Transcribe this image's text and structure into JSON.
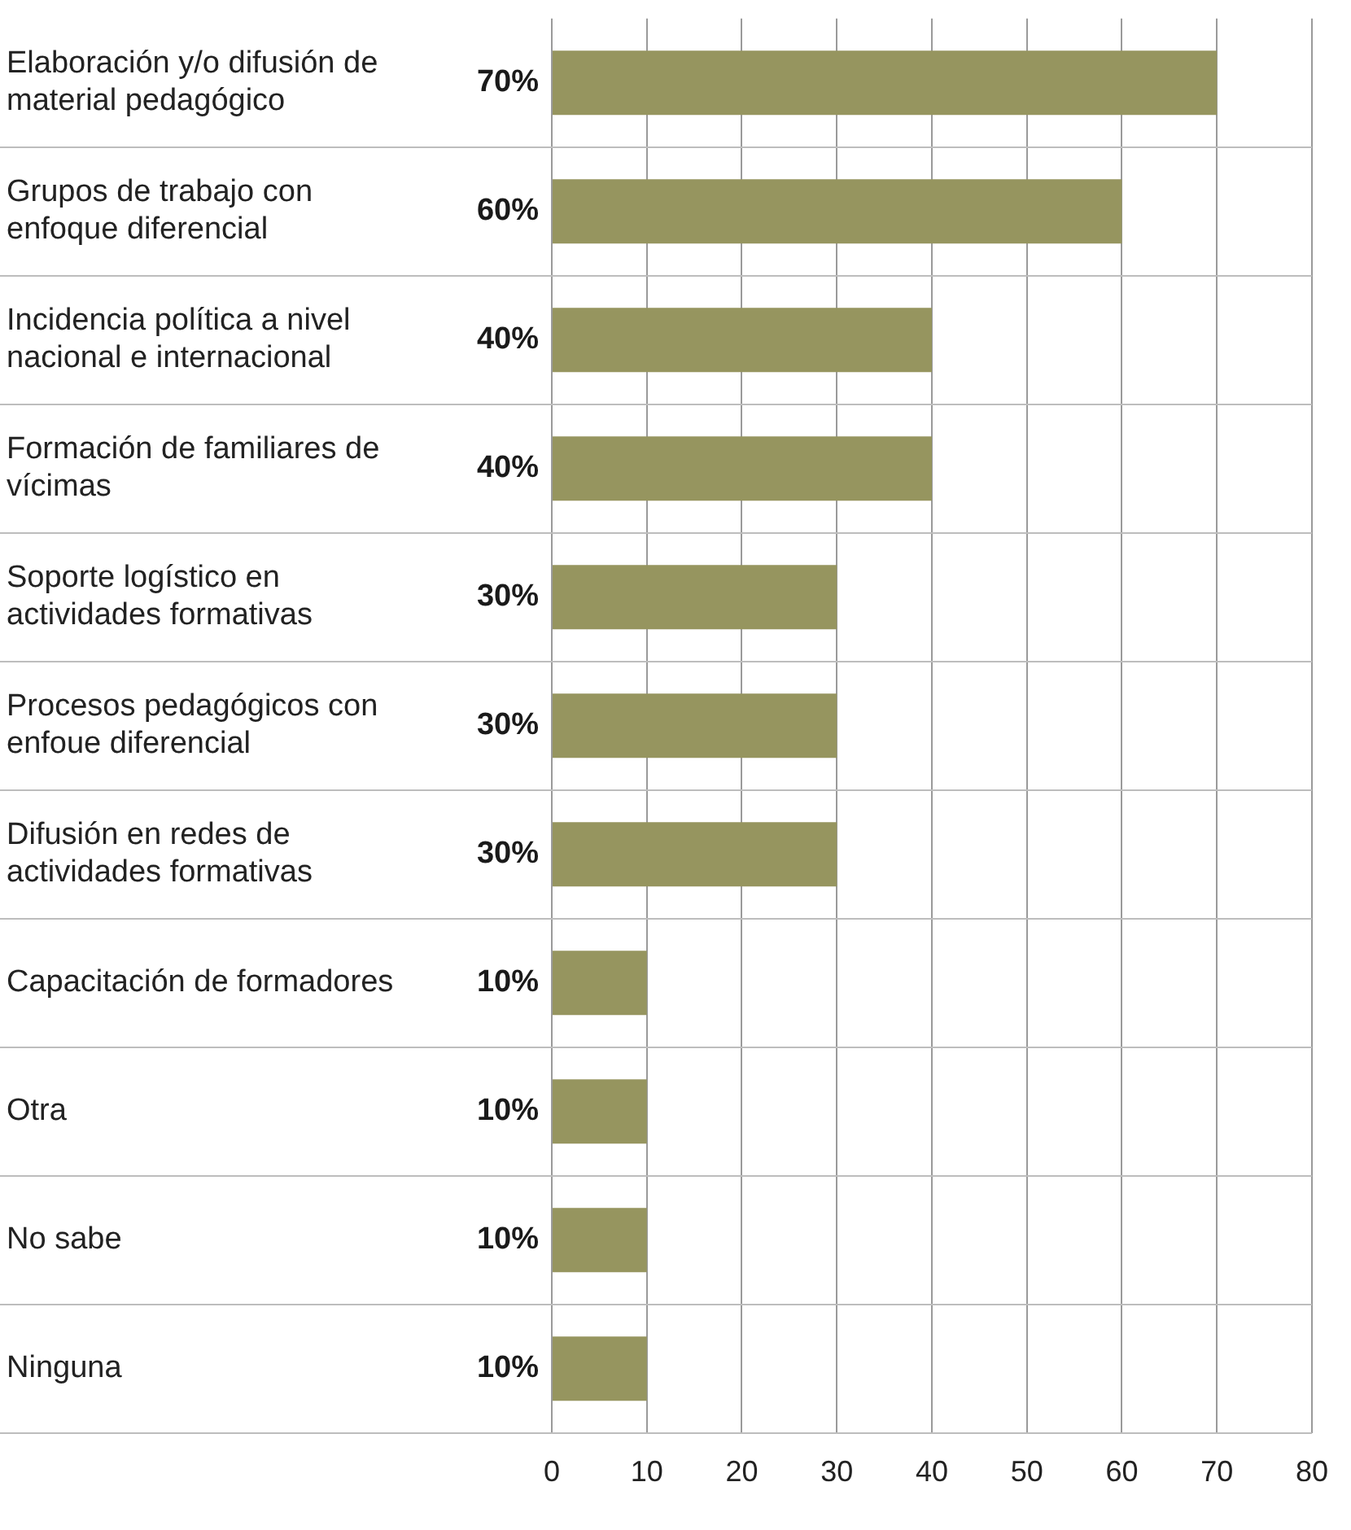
{
  "chart_data": {
    "type": "bar",
    "orientation": "horizontal",
    "categories": [
      "Elaboración y/o difusión de material pedagógico",
      "Grupos de trabajo con enfoque diferencial",
      "Incidencia política a nivel nacional e internacional",
      "Formación de familiares de vícimas",
      "Soporte logístico en actividades formativas",
      "Procesos pedagógicos con enfoue diferencial",
      "Difusión en redes de actividades formativas",
      "Capacitación de formadores",
      "Otra",
      "No sabe",
      "Ninguna"
    ],
    "values": [
      70,
      60,
      40,
      40,
      30,
      30,
      30,
      10,
      10,
      10,
      10
    ],
    "value_labels": [
      "70%",
      "60%",
      "40%",
      "40%",
      "30%",
      "30%",
      "30%",
      "10%",
      "10%",
      "10%",
      "10%"
    ],
    "color": "#96955f",
    "xlim": [
      0,
      80
    ],
    "xticks": [
      0,
      10,
      20,
      30,
      40,
      50,
      60,
      70,
      80
    ],
    "grid": true,
    "legend": false
  }
}
